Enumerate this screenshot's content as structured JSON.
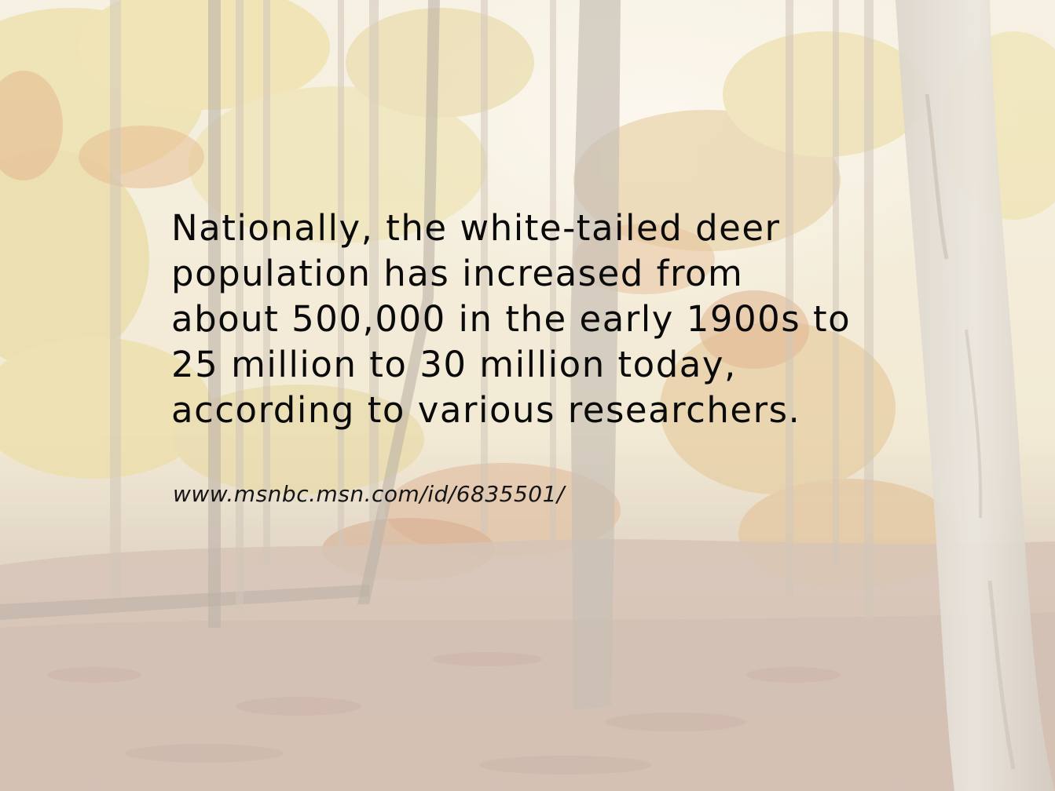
{
  "slide": {
    "body_text": "Nationally, the white-tailed deer\npopulation has increased from\nabout 500,000 in the early 1900s to\n25 million to 30 million today,\naccording to various researchers.",
    "source_url": "www.msnbc.msn.com/id/6835501/"
  },
  "background": {
    "description_icon": "autumn-forest-photo",
    "colors": {
      "sky": "#f6f0e2",
      "foliage_yellow": "#e6d58f",
      "foliage_orange": "#dcb27c",
      "trunk": "#b9ab97",
      "ground": "#c9b2a0",
      "wash": "#ffffff"
    }
  }
}
